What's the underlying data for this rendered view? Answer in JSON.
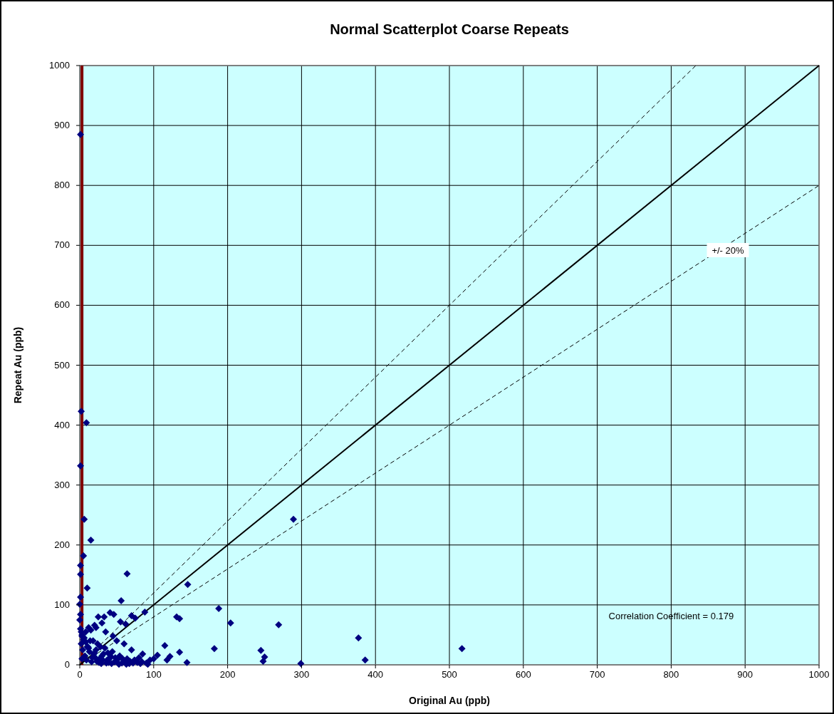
{
  "chart_data": {
    "type": "scatter",
    "title": "Normal Scatterplot Coarse Repeats",
    "xlabel": "Original Au (ppb)",
    "ylabel": "Repeat Au (ppb)",
    "xlim": [
      0,
      1000
    ],
    "ylim": [
      0,
      1000
    ],
    "xticks": [
      0,
      100,
      200,
      300,
      400,
      500,
      600,
      700,
      800,
      900,
      1000
    ],
    "yticks": [
      0,
      100,
      200,
      300,
      400,
      500,
      600,
      700,
      800,
      900,
      1000
    ],
    "grid": true,
    "ref_lines": [
      {
        "axis": "x",
        "value": 3,
        "color": "#800000"
      }
    ],
    "annotations": [
      "+/- 20%",
      "Correlation Coefficient = 0.179"
    ],
    "series": [
      {
        "marker": "diamond",
        "color": "#000080",
        "x": [
          1,
          2,
          9,
          1,
          6,
          15,
          5,
          1,
          1,
          10,
          64,
          146,
          56,
          131,
          135,
          115,
          135,
          145,
          289,
          188,
          204,
          269,
          182,
          245,
          250,
          248,
          299,
          377,
          386,
          517,
          0,
          1,
          0,
          1,
          25,
          41,
          33,
          46,
          88,
          70,
          75,
          62,
          80,
          55,
          30,
          20,
          12,
          8,
          3,
          15,
          22,
          35,
          45,
          50,
          60,
          70,
          85,
          95,
          18,
          28,
          38,
          48,
          58,
          68,
          78,
          90,
          10,
          20,
          30,
          40,
          50,
          2,
          6,
          14,
          24,
          34,
          44,
          54,
          64,
          74,
          84,
          4,
          12,
          22,
          32,
          42,
          52,
          62,
          72,
          82,
          92,
          7,
          17,
          27,
          37,
          47,
          57,
          67,
          3,
          9,
          16,
          26,
          36,
          43,
          53,
          63,
          1,
          2,
          3,
          5,
          8,
          11,
          13,
          19,
          21,
          23,
          29,
          31,
          39,
          100,
          105,
          118,
          122
        ],
        "values": [
          885,
          423,
          404,
          332,
          243,
          208,
          182,
          166,
          151,
          128,
          152,
          134,
          107,
          80,
          77,
          32,
          21,
          4,
          243,
          94,
          70,
          67,
          27,
          24,
          13,
          6,
          2,
          45,
          8,
          27,
          101,
          113,
          75,
          84,
          80,
          87,
          80,
          84,
          88,
          82,
          78,
          68,
          12,
          72,
          70,
          66,
          62,
          55,
          50,
          58,
          62,
          55,
          48,
          40,
          35,
          25,
          18,
          8,
          40,
          30,
          20,
          12,
          10,
          6,
          4,
          3,
          30,
          20,
          15,
          10,
          5,
          35,
          45,
          40,
          35,
          28,
          22,
          15,
          10,
          8,
          5,
          25,
          28,
          25,
          18,
          14,
          10,
          6,
          3,
          2,
          1,
          15,
          12,
          10,
          8,
          5,
          3,
          2,
          10,
          8,
          5,
          4,
          3,
          2,
          1,
          1,
          60,
          55,
          48,
          42,
          38,
          30,
          22,
          18,
          12,
          6,
          2,
          8,
          4,
          10,
          16,
          8,
          14
        ]
      },
      {
        "type": "line",
        "color": "#000000",
        "line_style": "solid",
        "x": [
          0,
          1000
        ],
        "values": [
          0,
          1000
        ]
      },
      {
        "type": "line",
        "color": "#000000",
        "line_style": "dashed",
        "x": [
          0,
          833.3
        ],
        "values": [
          0,
          1000
        ]
      },
      {
        "type": "line",
        "color": "#000000",
        "line_style": "dashed",
        "x": [
          0,
          1000
        ],
        "values": [
          0,
          800
        ]
      }
    ]
  }
}
